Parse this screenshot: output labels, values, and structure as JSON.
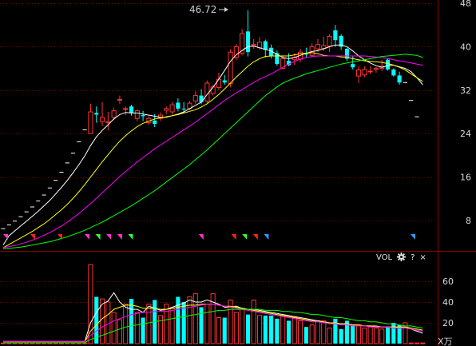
{
  "chart_data": [
    {
      "type": "candlestick",
      "annotations": {
        "max_label": "46.72"
      },
      "ylim": [
        3,
        48
      ],
      "y_ticks": [
        "48",
        "40",
        "32",
        "24",
        "16",
        "8"
      ],
      "ohlc": [
        [
          6.5,
          6.5,
          6.5,
          6.5
        ],
        [
          7.2,
          7.2,
          7.2,
          7.2
        ],
        [
          7.9,
          7.9,
          7.9,
          7.9
        ],
        [
          8.7,
          8.7,
          8.7,
          8.7
        ],
        [
          9.6,
          9.6,
          9.6,
          9.6
        ],
        [
          10.5,
          10.5,
          10.5,
          10.5
        ],
        [
          11.6,
          11.6,
          11.6,
          11.6
        ],
        [
          12.7,
          12.7,
          12.7,
          12.7
        ],
        [
          14.0,
          14.0,
          14.0,
          14.0
        ],
        [
          15.4,
          15.4,
          15.4,
          15.4
        ],
        [
          16.9,
          16.9,
          16.9,
          16.9
        ],
        [
          18.6,
          18.6,
          18.6,
          18.6
        ],
        [
          20.4,
          20.4,
          20.4,
          20.4
        ],
        [
          22.5,
          22.5,
          22.5,
          22.5
        ],
        [
          24.7,
          24.7,
          24.7,
          24.7
        ],
        [
          24.0,
          29.5,
          24.0,
          28.0
        ],
        [
          27.8,
          29.0,
          26.0,
          27.5
        ],
        [
          26.2,
          29.8,
          25.4,
          27.0
        ],
        [
          26.0,
          28.0,
          24.6,
          26.2
        ],
        [
          27.0,
          28.8,
          26.5,
          28.2
        ],
        [
          30.3,
          31.0,
          29.5,
          30.3
        ],
        [
          28.5,
          29.0,
          27.4,
          28.6
        ],
        [
          29.0,
          29.3,
          27.3,
          27.8
        ],
        [
          26.8,
          28.4,
          26.3,
          28.2
        ],
        [
          27.4,
          28.2,
          26.3,
          27.2
        ],
        [
          26.0,
          27.2,
          25.6,
          26.8
        ],
        [
          26.4,
          27.6,
          25.2,
          25.8
        ],
        [
          26.8,
          27.9,
          26.3,
          27.4
        ],
        [
          28.3,
          29.0,
          27.6,
          28.6
        ],
        [
          28.0,
          29.8,
          27.5,
          29.3
        ],
        [
          29.7,
          30.5,
          28.1,
          28.6
        ],
        [
          28.6,
          29.8,
          27.8,
          28.5
        ],
        [
          28.6,
          30.0,
          28.3,
          29.6
        ],
        [
          30.0,
          31.8,
          29.5,
          31.0
        ],
        [
          31.0,
          32.2,
          29.4,
          29.8
        ],
        [
          30.0,
          33.8,
          29.6,
          33.3
        ],
        [
          31.4,
          33.0,
          31.0,
          32.6
        ],
        [
          32.5,
          35.2,
          32.0,
          34.0
        ],
        [
          33.8,
          34.8,
          33.0,
          33.4
        ],
        [
          33.2,
          39.5,
          32.5,
          39.0
        ],
        [
          38.0,
          40.5,
          37.5,
          40.0
        ],
        [
          38.8,
          43.2,
          38.4,
          42.4
        ],
        [
          42.8,
          46.7,
          38.2,
          39.0
        ],
        [
          40.2,
          41.4,
          39.6,
          40.4
        ],
        [
          39.8,
          41.8,
          39.5,
          40.8
        ],
        [
          41.0,
          41.3,
          38.0,
          39.4
        ],
        [
          39.8,
          40.4,
          37.8,
          38.3
        ],
        [
          38.8,
          39.3,
          36.5,
          36.8
        ],
        [
          36.0,
          38.4,
          35.8,
          37.8
        ],
        [
          37.4,
          38.8,
          36.4,
          36.6
        ],
        [
          37.6,
          38.8,
          36.6,
          38.0
        ],
        [
          37.7,
          39.6,
          37.1,
          39.0
        ],
        [
          38.7,
          39.8,
          38.0,
          38.6
        ],
        [
          38.4,
          40.6,
          38.0,
          40.0
        ],
        [
          39.6,
          41.4,
          39.0,
          40.4
        ],
        [
          39.7,
          41.8,
          39.2,
          40.2
        ],
        [
          40.1,
          42.3,
          39.0,
          41.9
        ],
        [
          43.0,
          44.0,
          40.0,
          41.2
        ],
        [
          42.0,
          42.3,
          39.4,
          40.0
        ],
        [
          39.6,
          39.8,
          37.4,
          37.8
        ],
        [
          36.8,
          38.2,
          35.8,
          36.2
        ],
        [
          34.6,
          36.4,
          33.3,
          35.7
        ],
        [
          34.8,
          36.4,
          34.4,
          35.8
        ],
        [
          35.5,
          36.4,
          35.0,
          35.5
        ],
        [
          35.8,
          36.3,
          35.2,
          36.0
        ],
        [
          36.0,
          37.6,
          35.5,
          36.4
        ],
        [
          37.6,
          37.8,
          35.6,
          35.8
        ],
        [
          35.8,
          36.0,
          34.5,
          34.7
        ],
        [
          34.7,
          35.4,
          33.0,
          33.4
        ],
        [
          33.4,
          33.4,
          33.4,
          33.4
        ],
        [
          30.1,
          30.1,
          30.1,
          30.1
        ],
        [
          27.1,
          27.1,
          27.1,
          27.1
        ]
      ],
      "ma_lines": [
        {
          "color": "#ffffff",
          "values": [
            3.5,
            5.2,
            6.1,
            7.0,
            7.9,
            8.8,
            9.7,
            10.7,
            11.7,
            12.9,
            14.1,
            15.4,
            16.8,
            18.3,
            19.9,
            21.8,
            23.4,
            24.6,
            25.6,
            26.7,
            27.5,
            27.9,
            27.8,
            27.8,
            27.6,
            27.4,
            27.2,
            27.0,
            27.0,
            27.3,
            27.6,
            28.0,
            28.6,
            29.2,
            29.8,
            31.2,
            32.5,
            34.0,
            35.6,
            37.3,
            38.5,
            39.3,
            40.0,
            40.1,
            39.8,
            39.5,
            39.2,
            38.6,
            38.0,
            37.8,
            38.0,
            38.4,
            38.8,
            39.1,
            39.3,
            39.6,
            40.0,
            40.3,
            40.3,
            40.0,
            39.2,
            38.3,
            37.6,
            37.0,
            36.5,
            36.2,
            36.5,
            36.6,
            36.3,
            36.0,
            35.4,
            34.3,
            33.0
          ]
        },
        {
          "color": "#ffff00",
          "values": [
            3.0,
            3.6,
            4.2,
            4.8,
            5.4,
            6.0,
            6.7,
            7.4,
            8.2,
            9.1,
            10.0,
            11.0,
            12.1,
            13.3,
            14.6,
            16.0,
            17.4,
            18.8,
            20.1,
            21.4,
            22.6,
            23.6,
            24.5,
            25.3,
            25.9,
            26.3,
            26.7,
            26.9,
            27.1,
            27.3,
            27.5,
            27.8,
            28.1,
            28.4,
            28.9,
            29.5,
            30.3,
            31.2,
            32.2,
            33.3,
            34.4,
            35.4,
            36.4,
            37.2,
            37.8,
            38.2,
            38.3,
            38.3,
            38.3,
            38.3,
            38.5,
            38.7,
            38.8,
            38.9,
            38.7,
            38.4,
            38.3,
            38.3,
            38.1,
            38.0,
            37.8,
            37.6,
            37.4,
            37.3,
            37.2,
            37.1,
            36.9,
            36.6,
            36.2,
            35.7,
            35.0,
            34.3,
            33.6
          ]
        },
        {
          "color": "#ff00ff",
          "values": [
            3.0,
            3.2,
            3.4,
            3.7,
            4.0,
            4.4,
            4.8,
            5.3,
            5.8,
            6.4,
            7.0,
            7.7,
            8.5,
            9.3,
            10.2,
            11.1,
            12.1,
            13.1,
            14.1,
            15.1,
            16.1,
            17.0,
            17.9,
            18.8,
            19.6,
            20.4,
            21.2,
            21.9,
            22.6,
            23.3,
            24.0,
            24.7,
            25.4,
            26.1,
            26.9,
            27.7,
            28.5,
            29.3,
            30.1,
            30.8,
            31.5,
            32.1,
            32.8,
            33.4,
            34.0,
            34.5,
            35.0,
            35.6,
            36.2,
            36.8,
            37.3,
            37.7,
            38.0,
            38.2,
            38.3,
            38.3,
            38.3,
            38.3,
            38.3,
            38.3,
            38.3,
            38.3,
            38.3,
            38.2,
            38.1,
            38.0,
            37.8,
            37.6,
            37.4,
            37.2,
            37.0,
            36.8,
            36.6
          ]
        },
        {
          "color": "#00ff00",
          "values": [
            2.8,
            2.9,
            3.0,
            3.1,
            3.3,
            3.5,
            3.7,
            3.9,
            4.1,
            4.4,
            4.7,
            5.0,
            5.4,
            5.8,
            6.2,
            6.7,
            7.2,
            7.7,
            8.3,
            8.9,
            9.5,
            10.1,
            10.7,
            11.4,
            12.1,
            12.8,
            13.5,
            14.3,
            15.1,
            15.9,
            16.7,
            17.5,
            18.3,
            19.2,
            20.1,
            21.0,
            22.0,
            23.0,
            24.0,
            25.0,
            26.0,
            27.0,
            28.0,
            29.0,
            30.0,
            31.0,
            31.8,
            32.6,
            33.3,
            33.8,
            34.2,
            34.6,
            35.0,
            35.3,
            35.6,
            35.9,
            36.2,
            36.5,
            36.8,
            37.0,
            37.2,
            37.4,
            37.6,
            37.8,
            38.0,
            38.2,
            38.3,
            38.4,
            38.5,
            38.6,
            38.5,
            38.4,
            38.0
          ]
        }
      ],
      "signals": [
        {
          "i": 0,
          "color": "#ff33cc"
        },
        {
          "i": 5,
          "color": "#ff2222"
        },
        {
          "i": 10,
          "color": "#ff2222"
        },
        {
          "i": 15,
          "color": "#ff33cc"
        },
        {
          "i": 17,
          "color": "#33ff33"
        },
        {
          "i": 19,
          "color": "#ff33cc"
        },
        {
          "i": 21,
          "color": "#ff33cc"
        },
        {
          "i": 23,
          "color": "#33ff33"
        },
        {
          "i": 36,
          "color": "#ff33cc"
        },
        {
          "i": 42,
          "color": "#ff2222"
        },
        {
          "i": 44,
          "color": "#33ff33"
        },
        {
          "i": 46,
          "color": "#ff2222"
        },
        {
          "i": 48,
          "color": "#3399ff"
        },
        {
          "i": 87,
          "color": "#3399ff"
        }
      ]
    },
    {
      "type": "volume",
      "title": "VOL",
      "ylim": [
        0,
        78
      ],
      "y_ticks": [
        "60",
        "40",
        "20"
      ],
      "unit": "X万",
      "values": [
        0.6,
        0.6,
        0.6,
        0.6,
        0.6,
        0.6,
        0.6,
        0.6,
        0.6,
        0.6,
        0.6,
        0.6,
        0.6,
        0.6,
        0.6,
        76,
        45,
        43,
        40,
        30,
        23,
        38,
        43,
        30,
        25,
        38,
        42,
        27,
        38,
        34,
        45,
        40,
        45,
        48,
        35,
        38,
        48,
        25,
        25,
        42,
        30,
        34,
        28,
        42,
        27,
        27,
        27,
        24,
        27,
        22,
        26,
        22,
        16,
        18,
        22,
        22,
        15,
        24,
        14,
        22,
        18,
        18,
        15,
        16,
        15,
        14,
        16,
        20,
        18,
        20,
        0.6,
        0.6,
        0.6
      ],
      "ma_lines": [
        {
          "color": "#ffffff",
          "values": [
            2,
            2,
            2,
            2,
            2,
            2,
            2,
            2,
            2,
            2,
            2,
            2,
            2,
            2,
            2,
            20,
            30,
            38,
            41,
            49,
            40,
            35,
            33,
            33,
            30,
            36,
            34,
            32,
            33,
            35,
            37,
            39,
            42,
            40,
            40,
            42,
            40,
            38,
            35,
            35,
            36,
            34,
            33,
            33,
            32,
            31,
            30,
            29,
            28,
            27,
            26,
            25,
            24,
            23,
            22,
            21,
            20,
            19,
            19,
            19,
            18,
            18,
            17,
            17,
            16,
            16,
            16,
            16,
            16,
            16,
            14,
            12,
            10
          ]
        },
        {
          "color": "#ffff00",
          "values": [
            2,
            2,
            2,
            2,
            2,
            2,
            2,
            2,
            2,
            2,
            2,
            2,
            2,
            2,
            2,
            12,
            18,
            24,
            28,
            33,
            35,
            37,
            37,
            36,
            34,
            34,
            34,
            33,
            33,
            34,
            35,
            36,
            37,
            37,
            38,
            38,
            38,
            37,
            36,
            36,
            35,
            34,
            33,
            32,
            31,
            30,
            29,
            28,
            27,
            26,
            25,
            24,
            23,
            22,
            21,
            21,
            20,
            20,
            19,
            19,
            18,
            18,
            17,
            17,
            17,
            16,
            16,
            16,
            16,
            16,
            15,
            14,
            13
          ]
        },
        {
          "color": "#ff00ff",
          "values": [
            2,
            2,
            2,
            2,
            2,
            2,
            2,
            2,
            2,
            2,
            2,
            2,
            2,
            2,
            2,
            8,
            12,
            16,
            19,
            22,
            24,
            26,
            28,
            29,
            30,
            30,
            31,
            31,
            31,
            32,
            33,
            34,
            35,
            36,
            37,
            38,
            38,
            37,
            36,
            35,
            34,
            33,
            32,
            31,
            30,
            29,
            28,
            27,
            26,
            25,
            24,
            23,
            22,
            21,
            21,
            20,
            19,
            19,
            18,
            18,
            17,
            17,
            17,
            16,
            16,
            16,
            16,
            15,
            15,
            15,
            14,
            13,
            12
          ]
        },
        {
          "color": "#00ff00",
          "values": [
            1,
            1,
            1,
            1,
            1,
            1,
            1,
            1,
            1,
            1,
            1,
            1,
            1,
            1,
            1,
            4,
            6,
            8,
            10,
            12,
            14,
            16,
            17,
            18,
            19,
            20,
            21,
            22,
            23,
            24,
            25,
            26,
            27,
            28,
            29,
            30,
            31,
            32,
            32,
            33,
            33,
            33,
            33,
            33,
            33,
            32,
            32,
            32,
            31,
            31,
            30,
            30,
            29,
            28,
            28,
            27,
            26,
            25,
            25,
            24,
            23,
            22,
            22,
            21,
            21,
            20,
            19,
            19,
            18,
            17,
            17,
            16,
            15
          ]
        }
      ]
    }
  ],
  "toolbar": {
    "gear_icon": "gear-icon",
    "help_label": "?",
    "close_label": "×"
  },
  "colors": {
    "up": "#ff3333",
    "down": "#00ffff",
    "grid": "#8b0000",
    "axis_text": "#d9d9d9",
    "price_text": "#cccccc"
  }
}
